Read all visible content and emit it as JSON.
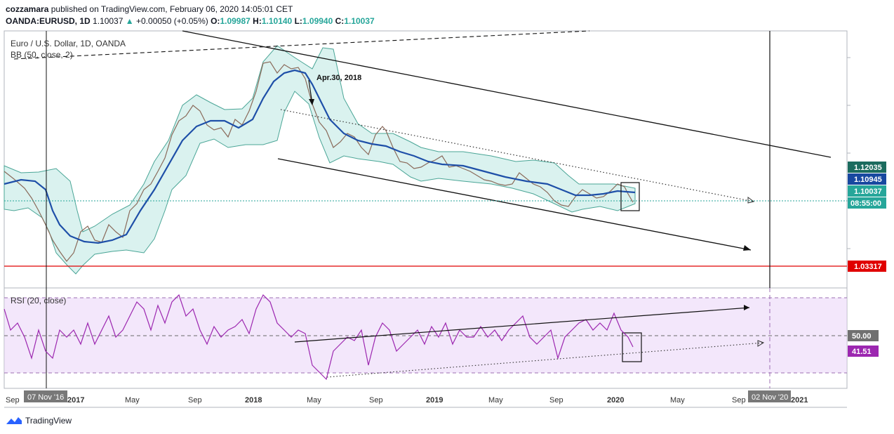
{
  "header": {
    "author": "cozzamara",
    "published_text": "published on TradingView.com, February 06, 2020 14:05:01 CET",
    "symbol": "OANDA:EURUSD, 1D",
    "last": "1.10037",
    "change_arrow": "▲",
    "change": "+0.00050 (+0.05%)",
    "o_label": "O:",
    "o": "1.09987",
    "h_label": "H:",
    "h": "1.10140",
    "l_label": "L:",
    "l": "1.09940",
    "c_label": "C:",
    "c": "1.10037"
  },
  "legend": {
    "instrument": "Euro / U.S. Dollar, 1D, OANDA",
    "bb": "BB (50, close, 2)",
    "rsi": "RSI (20, close)"
  },
  "annotations": {
    "date_note": "Apr.30, 2018"
  },
  "price_axis": {
    "badges": [
      {
        "label": "1.12035",
        "color": "#1b6b5e"
      },
      {
        "label": "1.10945",
        "color": "#1848a0"
      },
      {
        "label": "1.10037",
        "color": "#26a69a"
      },
      {
        "label": "08:55:00",
        "color": "#26a69a"
      },
      {
        "label": "1.03317",
        "color": "#e00000"
      }
    ],
    "rsi_badges": [
      {
        "label": "50.00",
        "color": "#707070"
      },
      {
        "label": "41.51",
        "color": "#9c27b0"
      }
    ]
  },
  "time_axis": {
    "ticks": [
      "Sep",
      "2017",
      "May",
      "Sep",
      "2018",
      "May",
      "Sep",
      "2019",
      "May",
      "Sep",
      "2020",
      "May",
      "Sep",
      "2021"
    ],
    "cursor_labels": [
      "07 Nov '16",
      "02 Nov '20"
    ]
  },
  "footer": {
    "brand": "TradingView",
    "logo_icon": "tradingview-logo-icon"
  },
  "chart_data": {
    "type": "line",
    "title": "Euro / U.S. Dollar, 1D, OANDA",
    "x_range": [
      "2016-08",
      "2021-03"
    ],
    "price_series": {
      "name": "EURUSD close (approx.)",
      "x": [
        "2016-08",
        "2016-10",
        "2016-11",
        "2016-12",
        "2017-01",
        "2017-03",
        "2017-04",
        "2017-05",
        "2017-06",
        "2017-07",
        "2017-08",
        "2017-09",
        "2017-10",
        "2017-11",
        "2017-12",
        "2018-01",
        "2018-02",
        "2018-03",
        "2018-04",
        "2018-05",
        "2018-06",
        "2018-07",
        "2018-08",
        "2018-09",
        "2018-10",
        "2018-11",
        "2018-12",
        "2019-01",
        "2019-02",
        "2019-03",
        "2019-04",
        "2019-05",
        "2019-06",
        "2019-07",
        "2019-08",
        "2019-09",
        "2019-10",
        "2019-11",
        "2019-12",
        "2020-01",
        "2020-02"
      ],
      "y": [
        1.12,
        1.11,
        1.09,
        1.05,
        1.06,
        1.075,
        1.07,
        1.11,
        1.14,
        1.17,
        1.19,
        1.19,
        1.165,
        1.18,
        1.2,
        1.235,
        1.23,
        1.23,
        1.21,
        1.165,
        1.16,
        1.17,
        1.16,
        1.175,
        1.15,
        1.135,
        1.14,
        1.145,
        1.135,
        1.13,
        1.12,
        1.12,
        1.135,
        1.115,
        1.11,
        1.095,
        1.11,
        1.105,
        1.115,
        1.11,
        1.10037
      ]
    },
    "bb_basis": {
      "name": "BB (50, close, 2)",
      "x": [
        "2016-08",
        "2016-12",
        "2017-02",
        "2017-05",
        "2017-08",
        "2017-11",
        "2018-01",
        "2018-03",
        "2018-05",
        "2018-07",
        "2018-09",
        "2018-12",
        "2019-03",
        "2019-06",
        "2019-09",
        "2019-11",
        "2020-01",
        "2020-02"
      ],
      "y": [
        1.115,
        1.075,
        1.065,
        1.09,
        1.17,
        1.175,
        1.21,
        1.23,
        1.2,
        1.165,
        1.16,
        1.14,
        1.135,
        1.125,
        1.105,
        1.11,
        1.11,
        1.10945
      ]
    },
    "rsi_series": {
      "name": "RSI (20, close)",
      "x": [
        "2016-08",
        "2016-11",
        "2017-01",
        "2017-04",
        "2017-07",
        "2017-10",
        "2018-01",
        "2018-03",
        "2018-05",
        "2018-07",
        "2018-10",
        "2019-01",
        "2019-04",
        "2019-07",
        "2019-09",
        "2019-11",
        "2020-01",
        "2020-02"
      ],
      "y": [
        58,
        35,
        45,
        62,
        68,
        50,
        70,
        58,
        30,
        48,
        46,
        50,
        52,
        55,
        40,
        60,
        65,
        41.51
      ]
    },
    "levels": {
      "resistance": 1.12035,
      "support": 1.03317,
      "rsi_mid": 50.0
    },
    "ylim": [
      1.02,
      1.26
    ],
    "rsi_ylim": [
      20,
      85
    ]
  }
}
